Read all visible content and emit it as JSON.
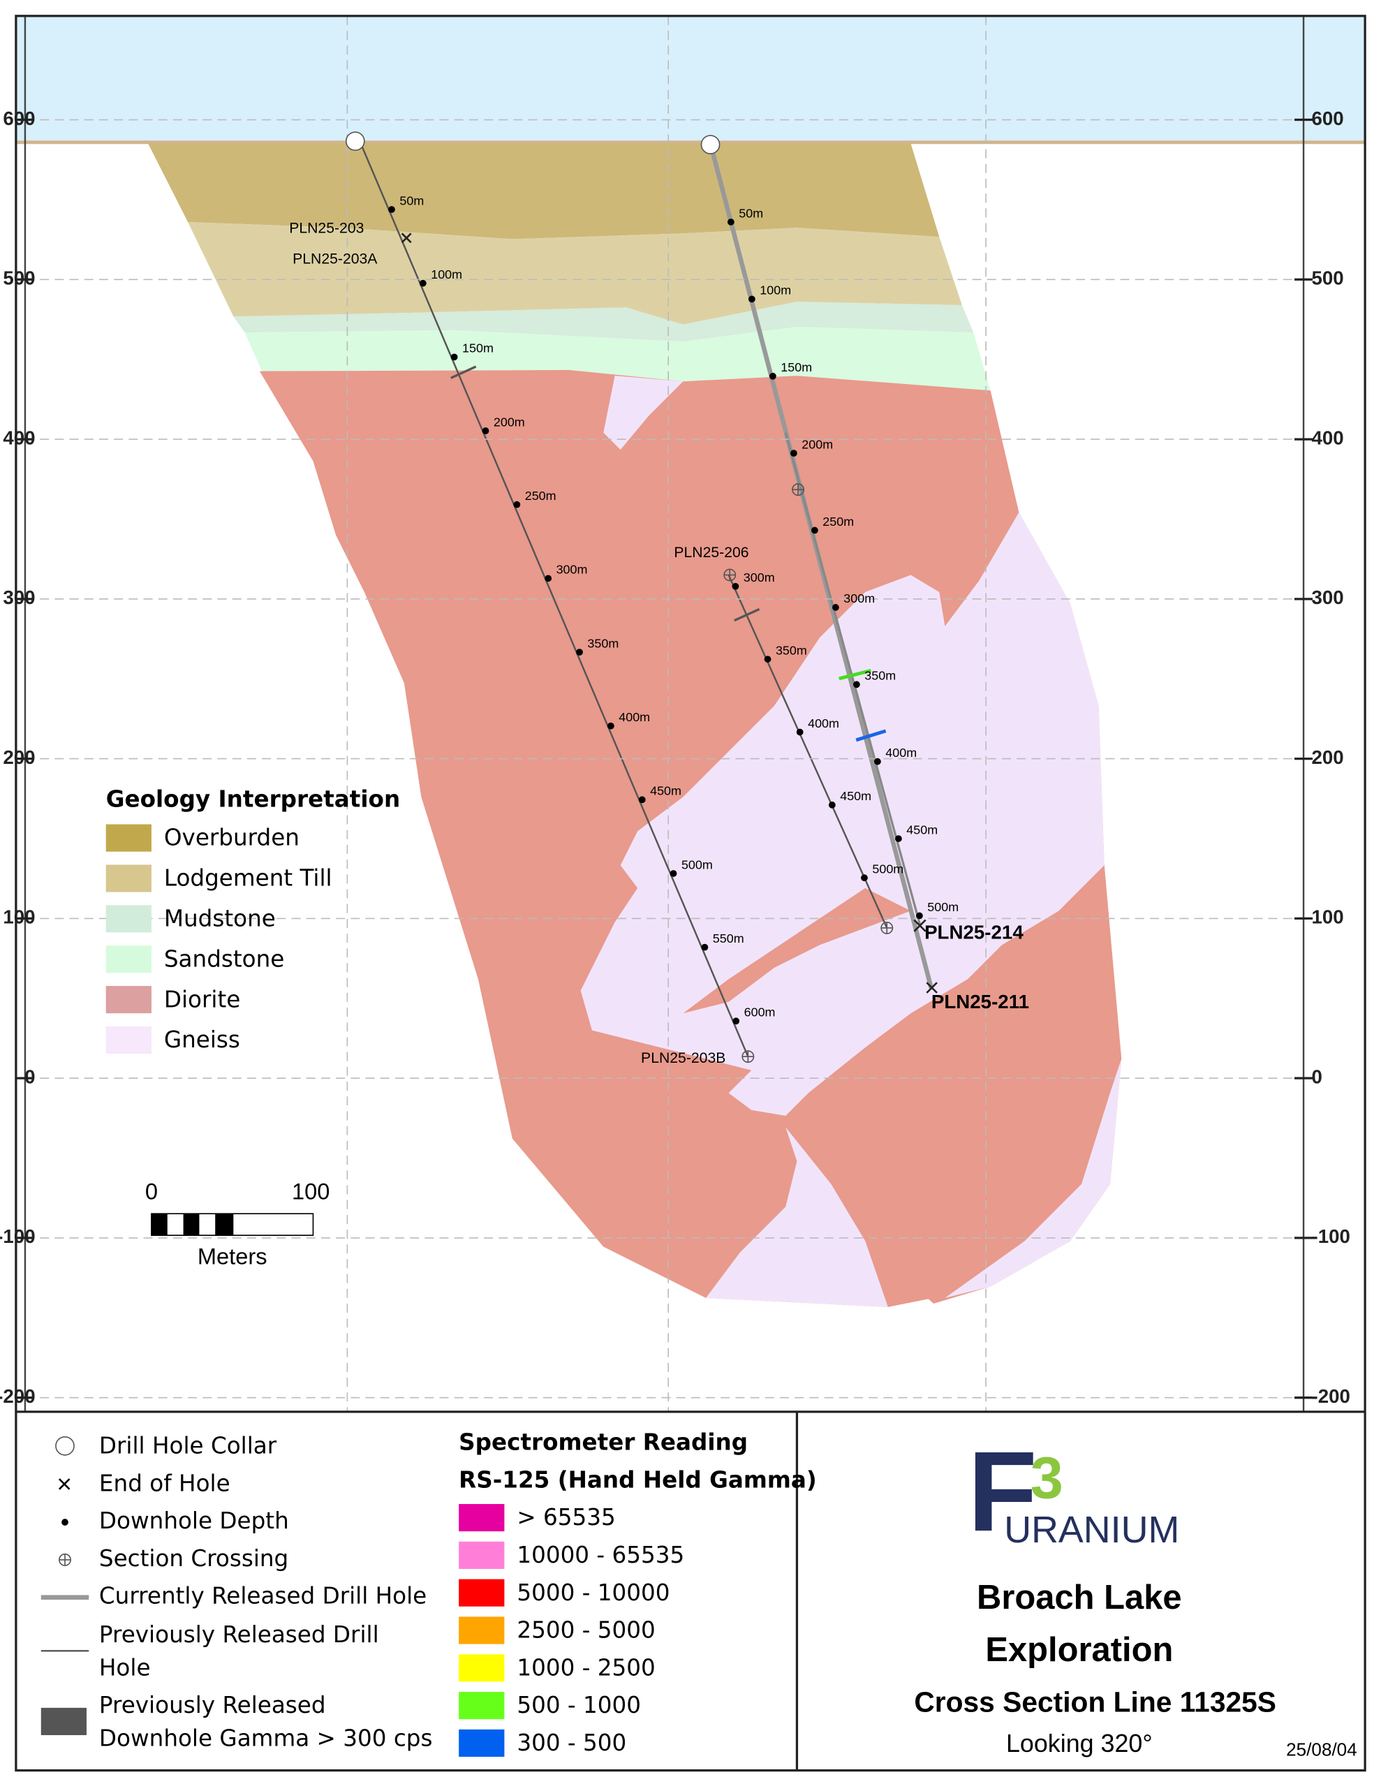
{
  "elevation_labels": [
    600,
    500,
    400,
    300,
    200,
    100,
    0,
    -100,
    -200
  ],
  "hole_labels": [
    "PLN25-203",
    "PLN25-203A",
    "PLN25-203B",
    "PLN25-206",
    "PLN25-211",
    "PLN25-214"
  ],
  "hole_203_depths": [
    "50m",
    "100m",
    "150m",
    "200m",
    "250m",
    "300m",
    "350m",
    "400m",
    "450m",
    "500m",
    "550m",
    "600m"
  ],
  "hole_206_depths": [
    "300m",
    "350m",
    "400m",
    "450m",
    "500m"
  ],
  "hole_211_depths": [
    "50m",
    "100m",
    "150m",
    "200m",
    "250m",
    "300m",
    "350m",
    "400m",
    "450m",
    "500m"
  ],
  "geology_legend": {
    "title": "Geology Interpretation",
    "items": [
      {
        "label": "Overburden",
        "color": "#c2a84c"
      },
      {
        "label": "Lodgement Till",
        "color": "#d7c68e"
      },
      {
        "label": "Mudstone",
        "color": "#d2ecdc"
      },
      {
        "label": "Sandstone",
        "color": "#d6fbdc"
      },
      {
        "label": "Diorite",
        "color": "#dca0a0"
      },
      {
        "label": "Gneiss",
        "color": "#f7e8fb"
      }
    ]
  },
  "scale_bar": {
    "start": 0,
    "end": 100,
    "unit": "Meters"
  },
  "symbol_legend": [
    {
      "lines": [
        "Drill Hole Collar"
      ]
    },
    {
      "lines": [
        "End of Hole"
      ]
    },
    {
      "lines": [
        "Downhole Depth"
      ]
    },
    {
      "lines": [
        "Section Crossing"
      ]
    },
    {
      "lines": [
        "Currently Released Drill Hole"
      ]
    },
    {
      "lines": [
        "Previously Released Drill",
        "Hole"
      ]
    },
    {
      "lines": [
        "Previously Released",
        "Downhole Gamma > 300 cps"
      ]
    }
  ],
  "spectrometer": {
    "title": [
      "Spectrometer Reading",
      "RS-125 (Hand Held Gamma)"
    ],
    "items": [
      {
        "label": "> 65535",
        "color": "#e600a0"
      },
      {
        "label": "10000 - 65535",
        "color": "#ff7fd8"
      },
      {
        "label": "5000 - 10000",
        "color": "#ff0000"
      },
      {
        "label": "2500 - 5000",
        "color": "#ffa500"
      },
      {
        "label": "1000 - 2500",
        "color": "#ffff00"
      },
      {
        "label": "500 - 1000",
        "color": "#66ff1a"
      },
      {
        "label": "300 - 500",
        "color": "#0060f0"
      }
    ]
  },
  "title_block": {
    "logo_letter": "F",
    "logo_number": "3",
    "logo_word": "URANIUM",
    "title": [
      "Broach Lake",
      "Exploration"
    ],
    "subtitle": "Cross Section Line 11325S",
    "view": "Looking 320°",
    "date": "25/08/04"
  }
}
